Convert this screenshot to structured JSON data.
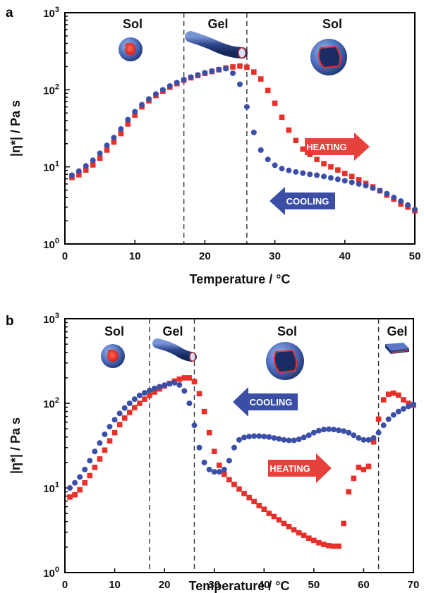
{
  "chart_data": [
    {
      "panel_label": "a",
      "type": "scatter",
      "xlabel": "Temperature / °C",
      "ylabel": "|η*| / Pa s",
      "xlim": [
        0,
        50
      ],
      "ylim": [
        1,
        1000
      ],
      "log_y": true,
      "x_ticks": [
        "0",
        "10",
        "20",
        "30",
        "40",
        "50"
      ],
      "y_ticks": [
        {
          "base": "10",
          "exp": "0"
        },
        {
          "base": "10",
          "exp": "1"
        },
        {
          "base": "10",
          "exp": "2"
        },
        {
          "base": "10",
          "exp": "3"
        }
      ],
      "dividers_x": [
        17,
        26
      ],
      "regions": [
        "Sol",
        "Gel",
        "Sol"
      ],
      "arrows": [
        {
          "text": "HEATING",
          "direction": "right",
          "color": "#e8403a"
        },
        {
          "text": "COOLING",
          "direction": "left",
          "color": "#3a4ea6"
        }
      ],
      "series": [
        {
          "color": "#e8302a",
          "marker": "square",
          "points": [
            [
              1,
              7.3
            ],
            [
              2,
              7.9
            ],
            [
              3,
              9.1
            ],
            [
              4,
              10.6
            ],
            [
              5,
              13
            ],
            [
              6,
              16.5
            ],
            [
              7,
              21
            ],
            [
              8,
              27
            ],
            [
              9,
              36
            ],
            [
              10,
              47
            ],
            [
              11,
              60
            ],
            [
              12,
              72
            ],
            [
              13,
              84
            ],
            [
              14,
              96
            ],
            [
              15,
              108
            ],
            [
              16,
              120
            ],
            [
              17,
              133
            ],
            [
              18,
              143
            ],
            [
              19,
              153
            ],
            [
              20,
              163
            ],
            [
              21,
              172
            ],
            [
              22,
              182
            ],
            [
              23,
              192
            ],
            [
              24,
              198
            ],
            [
              25,
              203
            ],
            [
              26,
              196
            ],
            [
              27,
              170
            ],
            [
              28,
              138
            ],
            [
              29,
              98
            ],
            [
              30,
              67
            ],
            [
              31,
              44
            ],
            [
              32,
              30
            ],
            [
              33,
              22
            ],
            [
              34,
              17
            ],
            [
              35,
              14.5
            ],
            [
              36,
              12.5
            ],
            [
              37,
              11
            ],
            [
              38,
              10
            ],
            [
              39,
              9.1
            ],
            [
              40,
              8.2
            ],
            [
              41,
              7.5
            ],
            [
              42,
              6.8
            ],
            [
              43,
              6.1
            ],
            [
              44,
              5.5
            ],
            [
              45,
              4.9
            ],
            [
              46,
              4.3
            ],
            [
              47,
              3.8
            ],
            [
              48,
              3.3
            ],
            [
              49,
              3.0
            ],
            [
              50,
              2.7
            ]
          ]
        },
        {
          "color": "#3b4fa8",
          "marker": "circle",
          "points": [
            [
              1,
              7.8
            ],
            [
              2,
              8.8
            ],
            [
              3,
              10.3
            ],
            [
              4,
              12.2
            ],
            [
              5,
              15
            ],
            [
              6,
              19
            ],
            [
              7,
              24
            ],
            [
              8,
              31
            ],
            [
              9,
              41
            ],
            [
              10,
              52
            ],
            [
              11,
              64
            ],
            [
              12,
              76
            ],
            [
              13,
              88
            ],
            [
              14,
              100
            ],
            [
              15,
              112
            ],
            [
              16,
              124
            ],
            [
              17,
              135
            ],
            [
              18,
              146
            ],
            [
              19,
              156
            ],
            [
              20,
              166
            ],
            [
              21,
              175
            ],
            [
              22,
              183
            ],
            [
              23,
              188
            ],
            [
              24,
              164
            ],
            [
              25,
              118
            ],
            [
              26,
              60
            ],
            [
              27,
              28
            ],
            [
              28,
              16.5
            ],
            [
              29,
              12.5
            ],
            [
              30,
              10.5
            ],
            [
              31,
              9.5
            ],
            [
              32,
              9.0
            ],
            [
              33,
              8.6
            ],
            [
              34,
              8.3
            ],
            [
              35,
              8.0
            ],
            [
              36,
              7.8
            ],
            [
              37,
              7.5
            ],
            [
              38,
              7.2
            ],
            [
              39,
              6.9
            ],
            [
              40,
              6.6
            ],
            [
              41,
              6.3
            ],
            [
              42,
              6.0
            ],
            [
              43,
              5.7
            ],
            [
              44,
              5.3
            ],
            [
              45,
              4.9
            ],
            [
              46,
              4.5
            ],
            [
              47,
              4.0
            ],
            [
              48,
              3.6
            ],
            [
              49,
              3.2
            ],
            [
              50,
              2.8
            ]
          ]
        }
      ]
    },
    {
      "panel_label": "b",
      "type": "scatter",
      "xlabel": "Temperature / °C",
      "ylabel": "|η*| / Pa s",
      "xlim": [
        0,
        70
      ],
      "ylim": [
        1,
        1000
      ],
      "log_y": true,
      "x_ticks": [
        "0",
        "10",
        "20",
        "30",
        "40",
        "50",
        "60",
        "70"
      ],
      "y_ticks": [
        {
          "base": "10",
          "exp": "0"
        },
        {
          "base": "10",
          "exp": "1"
        },
        {
          "base": "10",
          "exp": "2"
        },
        {
          "base": "10",
          "exp": "3"
        }
      ],
      "dividers_x": [
        17,
        26,
        63
      ],
      "regions": [
        "Sol",
        "Gel",
        "Sol",
        "Gel"
      ],
      "arrows": [
        {
          "text": "COOLING",
          "direction": "left",
          "color": "#3a4ea6"
        },
        {
          "text": "HEATING",
          "direction": "right",
          "color": "#e8403a"
        }
      ],
      "series": [
        {
          "color": "#e8302a",
          "marker": "square",
          "points": [
            [
              1,
              7.8
            ],
            [
              2,
              8.3
            ],
            [
              3,
              9.5
            ],
            [
              4,
              11.5
            ],
            [
              5,
              14
            ],
            [
              6,
              17.5
            ],
            [
              7,
              22
            ],
            [
              8,
              28
            ],
            [
              9,
              36
            ],
            [
              10,
              45
            ],
            [
              11,
              56
            ],
            [
              12,
              67
            ],
            [
              13,
              78
            ],
            [
              14,
              89
            ],
            [
              15,
              100
            ],
            [
              16,
              112
            ],
            [
              17,
              124
            ],
            [
              18,
              136
            ],
            [
              19,
              148
            ],
            [
              20,
              160
            ],
            [
              21,
              172
            ],
            [
              22,
              183
            ],
            [
              23,
              193
            ],
            [
              24,
              200
            ],
            [
              25,
              200
            ],
            [
              26,
              180
            ],
            [
              27,
              130
            ],
            [
              28,
              80
            ],
            [
              29,
              45
            ],
            [
              30,
              27
            ],
            [
              31,
              18.5
            ],
            [
              32,
              14.5
            ],
            [
              33,
              12.5
            ],
            [
              34,
              11
            ],
            [
              35,
              9.7
            ],
            [
              36,
              8.6
            ],
            [
              37,
              7.7
            ],
            [
              38,
              6.9
            ],
            [
              39,
              6.2
            ],
            [
              40,
              5.6
            ],
            [
              41,
              5.0
            ],
            [
              42,
              4.6
            ],
            [
              43,
              4.2
            ],
            [
              44,
              3.8
            ],
            [
              45,
              3.5
            ],
            [
              46,
              3.2
            ],
            [
              47,
              2.95
            ],
            [
              48,
              2.75
            ],
            [
              49,
              2.55
            ],
            [
              50,
              2.4
            ],
            [
              51,
              2.25
            ],
            [
              52,
              2.15
            ],
            [
              53,
              2.08
            ],
            [
              54,
              2.05
            ],
            [
              55,
              2.05
            ],
            [
              56,
              3.8
            ],
            [
              57,
              9
            ],
            [
              58,
              13
            ],
            [
              59,
              17.5
            ],
            [
              60,
              16.5
            ],
            [
              61,
              18
            ],
            [
              62,
              35
            ],
            [
              63,
              65
            ],
            [
              64,
              110
            ],
            [
              65,
              128
            ],
            [
              66,
              132
            ],
            [
              67,
              125
            ],
            [
              68,
              110
            ],
            [
              69,
              100
            ],
            [
              70,
              95
            ]
          ]
        },
        {
          "color": "#3b4fa8",
          "marker": "circle",
          "points": [
            [
              1,
              10
            ],
            [
              2,
              11.5
            ],
            [
              3,
              13.5
            ],
            [
              4,
              16.5
            ],
            [
              5,
              21
            ],
            [
              6,
              27
            ],
            [
              7,
              34
            ],
            [
              8,
              43
            ],
            [
              9,
              53
            ],
            [
              10,
              64
            ],
            [
              11,
              76
            ],
            [
              12,
              88
            ],
            [
              13,
              100
            ],
            [
              14,
              112
            ],
            [
              15,
              124
            ],
            [
              16,
              133
            ],
            [
              17,
              142
            ],
            [
              18,
              150
            ],
            [
              19,
              157
            ],
            [
              20,
              164
            ],
            [
              21,
              170
            ],
            [
              22,
              175
            ],
            [
              23,
              165
            ],
            [
              24,
              140
            ],
            [
              25,
              100
            ],
            [
              26,
              55
            ],
            [
              27,
              30
            ],
            [
              28,
              20
            ],
            [
              29,
              16.5
            ],
            [
              30,
              15.5
            ],
            [
              31,
              15.5
            ],
            [
              32,
              16.5
            ],
            [
              33,
              21
            ],
            [
              34,
              30
            ],
            [
              35,
              37
            ],
            [
              36,
              39.5
            ],
            [
              37,
              40.5
            ],
            [
              38,
              41
            ],
            [
              39,
              41
            ],
            [
              40,
              40.5
            ],
            [
              41,
              40
            ],
            [
              42,
              39
            ],
            [
              43,
              38
            ],
            [
              44,
              37
            ],
            [
              45,
              36.5
            ],
            [
              46,
              36.5
            ],
            [
              47,
              37.5
            ],
            [
              48,
              39.5
            ],
            [
              49,
              42
            ],
            [
              50,
              45
            ],
            [
              51,
              47.5
            ],
            [
              52,
              49
            ],
            [
              53,
              49.5
            ],
            [
              54,
              49
            ],
            [
              55,
              48
            ],
            [
              56,
              47
            ],
            [
              57,
              45
            ],
            [
              58,
              42
            ],
            [
              59,
              39
            ],
            [
              60,
              37
            ],
            [
              61,
              37
            ],
            [
              62,
              39
            ],
            [
              63,
              45
            ],
            [
              64,
              55
            ],
            [
              65,
              65
            ],
            [
              66,
              73
            ],
            [
              67,
              80
            ],
            [
              68,
              86
            ],
            [
              69,
              92
            ],
            [
              70,
              97
            ]
          ]
        }
      ]
    }
  ]
}
